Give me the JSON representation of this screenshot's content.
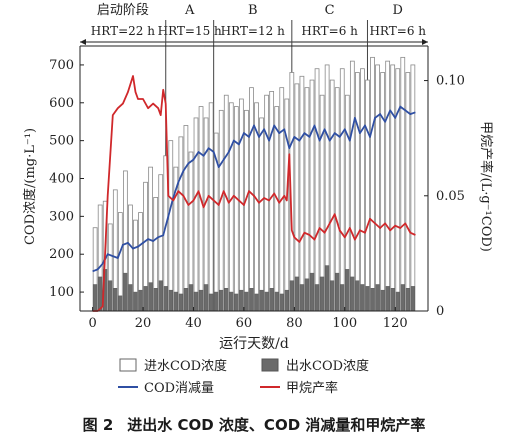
{
  "chart_data": {
    "type": "bar",
    "figure_label": "图 2",
    "caption_text": "进出水 COD 浓度、COD 消减量和甲烷产率",
    "xlabel": "运行天数/d",
    "ylabel_left": "COD浓度/(mg·L⁻¹)",
    "ylabel_right": "甲烷产率/(L·g⁻¹COD)",
    "xlim": [
      -5,
      133
    ],
    "ylim_left": [
      50,
      750
    ],
    "ylim_right": [
      0,
      0.115
    ],
    "x_ticks": [
      0,
      20,
      40,
      60,
      80,
      100,
      120
    ],
    "y_ticks_left": [
      100,
      200,
      300,
      400,
      500,
      600,
      700
    ],
    "y_ticks_right": [
      0,
      0.05,
      0.1
    ],
    "y_ticks_right_labels": [
      "0",
      "0.05",
      "0.10"
    ],
    "phases": [
      {
        "name": "启动阶段",
        "hrt": "HRT=22 h",
        "start": -5,
        "end": 29
      },
      {
        "name": "A",
        "hrt": "HRT=15 h",
        "start": 29,
        "end": 48
      },
      {
        "name": "B",
        "hrt": "HRT=12 h",
        "start": 48,
        "end": 79
      },
      {
        "name": "C",
        "hrt": "HRT=6 h",
        "start": 79,
        "end": 109
      },
      {
        "name": "D",
        "hrt": "HRT=6 h",
        "start": 109,
        "end": 133
      }
    ],
    "series": [
      {
        "name": "进水COD浓度",
        "kind": "bar",
        "color": "#ffffff",
        "stroke": "#8a8a8a",
        "x": [
          1,
          3,
          5,
          7,
          9,
          11,
          13,
          15,
          17,
          19,
          21,
          23,
          25,
          27,
          29,
          31,
          33,
          35,
          37,
          39,
          41,
          43,
          45,
          47,
          49,
          51,
          53,
          55,
          57,
          59,
          61,
          63,
          65,
          67,
          69,
          71,
          73,
          75,
          77,
          79,
          81,
          83,
          85,
          87,
          89,
          91,
          93,
          95,
          97,
          99,
          101,
          103,
          105,
          107,
          109,
          111,
          113,
          115,
          117,
          119,
          121,
          123,
          125,
          127
        ],
        "values": [
          270,
          330,
          340,
          280,
          370,
          310,
          420,
          330,
          290,
          310,
          390,
          430,
          350,
          410,
          460,
          500,
          430,
          510,
          540,
          470,
          560,
          590,
          560,
          600,
          520,
          580,
          620,
          600,
          590,
          610,
          580,
          640,
          600,
          560,
          620,
          630,
          590,
          640,
          610,
          680,
          650,
          670,
          640,
          660,
          690,
          620,
          700,
          660,
          640,
          690,
          620,
          710,
          680,
          690,
          660,
          720,
          700,
          680,
          710,
          700,
          690,
          720,
          680,
          700
        ]
      },
      {
        "name": "出水COD浓度",
        "kind": "bar",
        "color": "#6b6b6b",
        "x": [
          1,
          3,
          5,
          7,
          9,
          11,
          13,
          15,
          17,
          19,
          21,
          23,
          25,
          27,
          29,
          31,
          33,
          35,
          37,
          39,
          41,
          43,
          45,
          47,
          49,
          51,
          53,
          55,
          57,
          59,
          61,
          63,
          65,
          67,
          69,
          71,
          73,
          75,
          77,
          79,
          81,
          83,
          85,
          87,
          89,
          91,
          93,
          95,
          97,
          99,
          101,
          103,
          105,
          107,
          109,
          111,
          113,
          115,
          117,
          119,
          121,
          123,
          125,
          127
        ],
        "values": [
          120,
          140,
          160,
          130,
          110,
          90,
          150,
          120,
          100,
          105,
          115,
          125,
          110,
          130,
          115,
          105,
          100,
          95,
          110,
          120,
          100,
          105,
          120,
          95,
          100,
          105,
          110,
          100,
          95,
          105,
          100,
          110,
          95,
          105,
          100,
          110,
          100,
          95,
          105,
          130,
          140,
          120,
          135,
          150,
          120,
          140,
          170,
          130,
          150,
          120,
          160,
          140,
          130,
          120,
          115,
          110,
          120,
          105,
          115,
          110,
          100,
          120,
          110,
          115
        ]
      },
      {
        "name": "COD消减量",
        "kind": "line",
        "axis": "left",
        "color": "#2f4fa3",
        "x": [
          0,
          2,
          4,
          6,
          8,
          10,
          12,
          14,
          16,
          18,
          20,
          22,
          24,
          26,
          28,
          30,
          32,
          34,
          36,
          38,
          40,
          42,
          44,
          46,
          48,
          50,
          52,
          54,
          56,
          58,
          60,
          62,
          64,
          66,
          68,
          70,
          72,
          74,
          76,
          78,
          80,
          82,
          84,
          86,
          88,
          90,
          92,
          94,
          96,
          98,
          100,
          102,
          104,
          106,
          108,
          110,
          112,
          114,
          116,
          118,
          120,
          122,
          124,
          126,
          128
        ],
        "values": [
          155,
          160,
          175,
          200,
          195,
          190,
          225,
          230,
          215,
          220,
          230,
          240,
          235,
          245,
          250,
          300,
          350,
          390,
          420,
          440,
          450,
          470,
          460,
          480,
          470,
          430,
          450,
          470,
          500,
          490,
          520,
          510,
          540,
          510,
          530,
          500,
          540,
          520,
          530,
          480,
          510,
          500,
          520,
          510,
          540,
          500,
          530,
          500,
          520,
          510,
          530,
          500,
          560,
          520,
          540,
          510,
          560,
          570,
          550,
          580,
          560,
          590,
          580,
          570,
          575
        ]
      },
      {
        "name": "甲烷产率",
        "kind": "line",
        "axis": "right",
        "color": "#d0282b",
        "x": [
          0,
          2,
          4,
          6,
          8,
          10,
          12,
          14,
          16,
          17,
          18,
          20,
          22,
          24,
          26,
          27,
          28,
          29,
          30,
          32,
          34,
          36,
          38,
          40,
          42,
          44,
          46,
          48,
          50,
          52,
          54,
          56,
          58,
          60,
          62,
          64,
          66,
          68,
          70,
          72,
          74,
          76,
          77,
          78,
          79,
          80,
          82,
          84,
          86,
          88,
          90,
          92,
          94,
          96,
          98,
          100,
          102,
          104,
          106,
          108,
          110,
          112,
          114,
          116,
          118,
          120,
          122,
          124,
          126,
          128
        ],
        "values": [
          0.0,
          0.0,
          0.002,
          0.05,
          0.085,
          0.088,
          0.09,
          0.095,
          0.102,
          0.095,
          0.092,
          0.092,
          0.088,
          0.09,
          0.088,
          0.085,
          0.096,
          0.09,
          0.05,
          0.048,
          0.052,
          0.05,
          0.046,
          0.048,
          0.052,
          0.045,
          0.05,
          0.048,
          0.046,
          0.052,
          0.047,
          0.05,
          0.048,
          0.046,
          0.052,
          0.05,
          0.047,
          0.049,
          0.048,
          0.051,
          0.047,
          0.05,
          0.048,
          0.068,
          0.035,
          0.032,
          0.03,
          0.034,
          0.033,
          0.031,
          0.036,
          0.034,
          0.038,
          0.042,
          0.035,
          0.032,
          0.036,
          0.031,
          0.035,
          0.034,
          0.04,
          0.038,
          0.036,
          0.038,
          0.035,
          0.037,
          0.036,
          0.038,
          0.034,
          0.033
        ]
      }
    ],
    "legend": [
      "进水COD浓度",
      "出水COD浓度",
      "COD消减量",
      "甲烷产率"
    ]
  }
}
